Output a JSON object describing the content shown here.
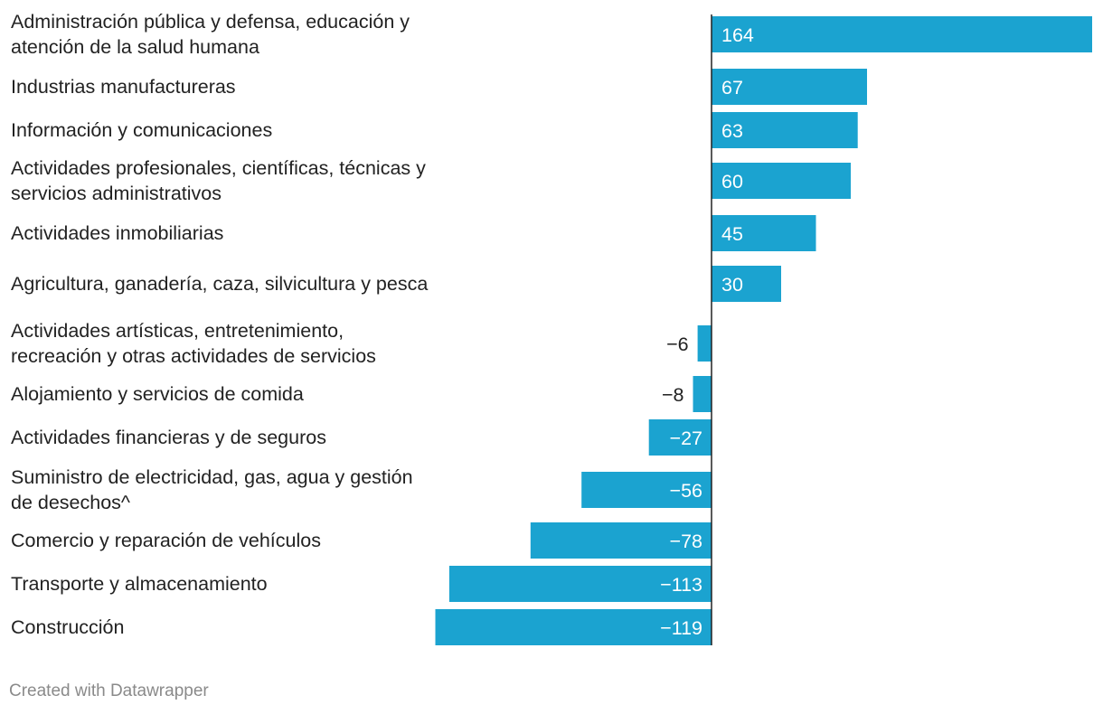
{
  "chart_data": {
    "type": "bar",
    "orientation": "horizontal",
    "categories": [
      "Administración pública y defensa, educación y atención de la salud humana",
      "Industrias manufactureras",
      "Información y comunicaciones",
      "Actividades profesionales, científicas, técnicas y servicios administrativos",
      "Actividades inmobiliarias",
      "Agricultura, ganadería, caza, silvicultura y pesca",
      "Actividades artísticas, entretenimiento, recreación y otras actividades de servicios",
      "Alojamiento y servicios de comida",
      "Actividades financieras y de seguros",
      "Suministro de electricidad, gas, agua y gestión de desechos^",
      "Comercio y reparación de vehículos",
      "Transporte y almacenamiento",
      "Construcción"
    ],
    "values": [
      164,
      67,
      63,
      60,
      45,
      30,
      -6,
      -8,
      -27,
      -56,
      -78,
      -113,
      -119
    ],
    "value_labels": [
      "164",
      "67",
      "63",
      "60",
      "45",
      "30",
      "−6",
      "−8",
      "−27",
      "−56",
      "−78",
      "−113",
      "−119"
    ],
    "xlim": [
      -119,
      164
    ],
    "bar_color": "#1ba3d0",
    "grid": false,
    "title": "",
    "xlabel": "",
    "ylabel": ""
  },
  "footer": {
    "credit": "Created with Datawrapper"
  }
}
